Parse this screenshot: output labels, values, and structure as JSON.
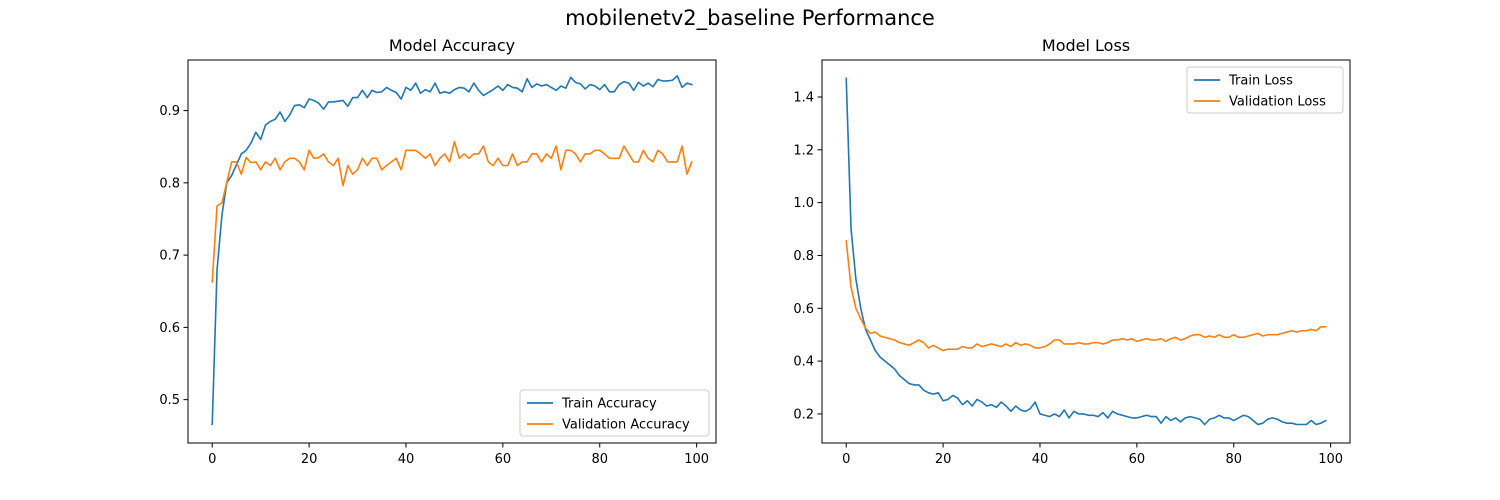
{
  "figure": {
    "title": "mobilenetv2_baseline Performance"
  },
  "chart_data": [
    {
      "type": "line",
      "title": "Model Accuracy",
      "xlabel": "",
      "ylabel": "",
      "xlim": [
        -5,
        104
      ],
      "ylim": [
        0.44,
        0.97
      ],
      "xticks": [
        0,
        20,
        40,
        60,
        80,
        100
      ],
      "yticks": [
        0.5,
        0.6,
        0.7,
        0.8,
        0.9
      ],
      "tick_decimals": 1,
      "grid": false,
      "legend": "lower-right",
      "series": [
        {
          "name": "Train Accuracy",
          "color": "#1f77b4",
          "values": [
            0.466,
            0.68,
            0.755,
            0.8,
            0.81,
            0.825,
            0.84,
            0.845,
            0.855,
            0.87,
            0.86,
            0.88,
            0.885,
            0.888,
            0.898,
            0.885,
            0.894,
            0.907,
            0.908,
            0.904,
            0.916,
            0.914,
            0.91,
            0.902,
            0.912,
            0.912,
            0.913,
            0.914,
            0.906,
            0.918,
            0.918,
            0.928,
            0.918,
            0.928,
            0.925,
            0.926,
            0.932,
            0.928,
            0.925,
            0.916,
            0.932,
            0.928,
            0.938,
            0.924,
            0.929,
            0.926,
            0.938,
            0.924,
            0.926,
            0.924,
            0.929,
            0.932,
            0.931,
            0.926,
            0.938,
            0.928,
            0.921,
            0.925,
            0.929,
            0.934,
            0.928,
            0.936,
            0.932,
            0.931,
            0.926,
            0.944,
            0.932,
            0.937,
            0.934,
            0.936,
            0.932,
            0.928,
            0.934,
            0.931,
            0.946,
            0.939,
            0.937,
            0.93,
            0.936,
            0.934,
            0.929,
            0.936,
            0.926,
            0.926,
            0.936,
            0.94,
            0.938,
            0.928,
            0.939,
            0.934,
            0.938,
            0.933,
            0.943,
            0.941,
            0.941,
            0.942,
            0.948,
            0.932,
            0.938,
            0.936
          ]
        },
        {
          "name": "Validation Accuracy",
          "color": "#ff7f0e",
          "values": [
            0.663,
            0.768,
            0.772,
            0.8,
            0.829,
            0.829,
            0.812,
            0.835,
            0.828,
            0.829,
            0.818,
            0.829,
            0.824,
            0.834,
            0.818,
            0.829,
            0.834,
            0.834,
            0.829,
            0.818,
            0.845,
            0.834,
            0.835,
            0.84,
            0.829,
            0.824,
            0.834,
            0.796,
            0.824,
            0.812,
            0.818,
            0.834,
            0.824,
            0.834,
            0.834,
            0.818,
            0.824,
            0.829,
            0.834,
            0.818,
            0.845,
            0.845,
            0.845,
            0.84,
            0.834,
            0.84,
            0.824,
            0.834,
            0.84,
            0.829,
            0.857,
            0.834,
            0.84,
            0.834,
            0.84,
            0.84,
            0.851,
            0.829,
            0.824,
            0.834,
            0.824,
            0.824,
            0.84,
            0.824,
            0.829,
            0.829,
            0.84,
            0.84,
            0.829,
            0.84,
            0.834,
            0.851,
            0.818,
            0.845,
            0.845,
            0.84,
            0.829,
            0.84,
            0.84,
            0.845,
            0.845,
            0.84,
            0.834,
            0.834,
            0.834,
            0.851,
            0.84,
            0.829,
            0.829,
            0.845,
            0.834,
            0.829,
            0.845,
            0.84,
            0.829,
            0.829,
            0.829,
            0.851,
            0.812,
            0.829
          ]
        }
      ]
    },
    {
      "type": "line",
      "title": "Model Loss",
      "xlabel": "",
      "ylabel": "",
      "xlim": [
        -5,
        104
      ],
      "ylim": [
        0.09,
        1.54
      ],
      "xticks": [
        0,
        20,
        40,
        60,
        80,
        100
      ],
      "yticks": [
        0.2,
        0.4,
        0.6,
        0.8,
        1.0,
        1.2,
        1.4
      ],
      "tick_decimals": 1,
      "grid": false,
      "legend": "upper-right",
      "series": [
        {
          "name": "Train Loss",
          "color": "#1f77b4",
          "values": [
            1.47,
            0.9,
            0.71,
            0.6,
            0.52,
            0.48,
            0.44,
            0.415,
            0.4,
            0.385,
            0.37,
            0.345,
            0.33,
            0.315,
            0.31,
            0.31,
            0.29,
            0.28,
            0.275,
            0.28,
            0.25,
            0.255,
            0.27,
            0.26,
            0.235,
            0.25,
            0.23,
            0.255,
            0.245,
            0.23,
            0.235,
            0.225,
            0.245,
            0.23,
            0.21,
            0.23,
            0.215,
            0.21,
            0.22,
            0.245,
            0.2,
            0.195,
            0.19,
            0.2,
            0.19,
            0.215,
            0.185,
            0.21,
            0.2,
            0.2,
            0.195,
            0.195,
            0.19,
            0.205,
            0.185,
            0.21,
            0.2,
            0.195,
            0.19,
            0.185,
            0.185,
            0.19,
            0.195,
            0.19,
            0.19,
            0.165,
            0.19,
            0.175,
            0.185,
            0.17,
            0.185,
            0.19,
            0.185,
            0.18,
            0.16,
            0.18,
            0.185,
            0.195,
            0.185,
            0.185,
            0.175,
            0.185,
            0.195,
            0.19,
            0.175,
            0.16,
            0.165,
            0.18,
            0.185,
            0.18,
            0.17,
            0.165,
            0.165,
            0.16,
            0.16,
            0.16,
            0.175,
            0.16,
            0.165,
            0.175
          ]
        },
        {
          "name": "Validation Loss",
          "color": "#ff7f0e",
          "values": [
            0.855,
            0.68,
            0.6,
            0.56,
            0.525,
            0.505,
            0.51,
            0.495,
            0.49,
            0.485,
            0.48,
            0.47,
            0.465,
            0.46,
            0.47,
            0.48,
            0.47,
            0.45,
            0.46,
            0.45,
            0.44,
            0.445,
            0.445,
            0.445,
            0.455,
            0.45,
            0.45,
            0.465,
            0.455,
            0.46,
            0.465,
            0.46,
            0.455,
            0.465,
            0.455,
            0.47,
            0.46,
            0.465,
            0.46,
            0.45,
            0.45,
            0.455,
            0.465,
            0.48,
            0.48,
            0.465,
            0.465,
            0.465,
            0.47,
            0.465,
            0.465,
            0.47,
            0.47,
            0.465,
            0.47,
            0.48,
            0.48,
            0.485,
            0.48,
            0.485,
            0.475,
            0.48,
            0.485,
            0.48,
            0.48,
            0.485,
            0.475,
            0.485,
            0.49,
            0.48,
            0.485,
            0.495,
            0.5,
            0.5,
            0.49,
            0.495,
            0.49,
            0.5,
            0.49,
            0.49,
            0.5,
            0.49,
            0.49,
            0.495,
            0.5,
            0.505,
            0.495,
            0.5,
            0.5,
            0.5,
            0.505,
            0.51,
            0.515,
            0.51,
            0.515,
            0.515,
            0.52,
            0.515,
            0.53,
            0.53
          ]
        }
      ]
    }
  ]
}
